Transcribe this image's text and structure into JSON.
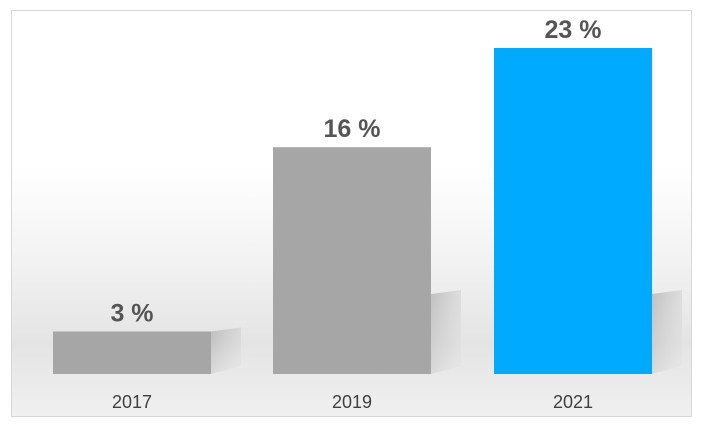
{
  "chart_data": {
    "type": "bar",
    "title": "",
    "xlabel": "",
    "ylabel": "",
    "categories": [
      "2017",
      "2019",
      "2021"
    ],
    "values": [
      3,
      16,
      23
    ],
    "value_labels": [
      "3 %",
      "16 %",
      "23 %"
    ],
    "ylim": [
      0,
      23
    ],
    "grid": false,
    "legend": "none",
    "colors": {
      "default_bar": "#a6a6a6",
      "highlight_bar": "#00aaff",
      "value_label": "#555555",
      "category_label": "#404040"
    },
    "highlight_index": 2
  }
}
